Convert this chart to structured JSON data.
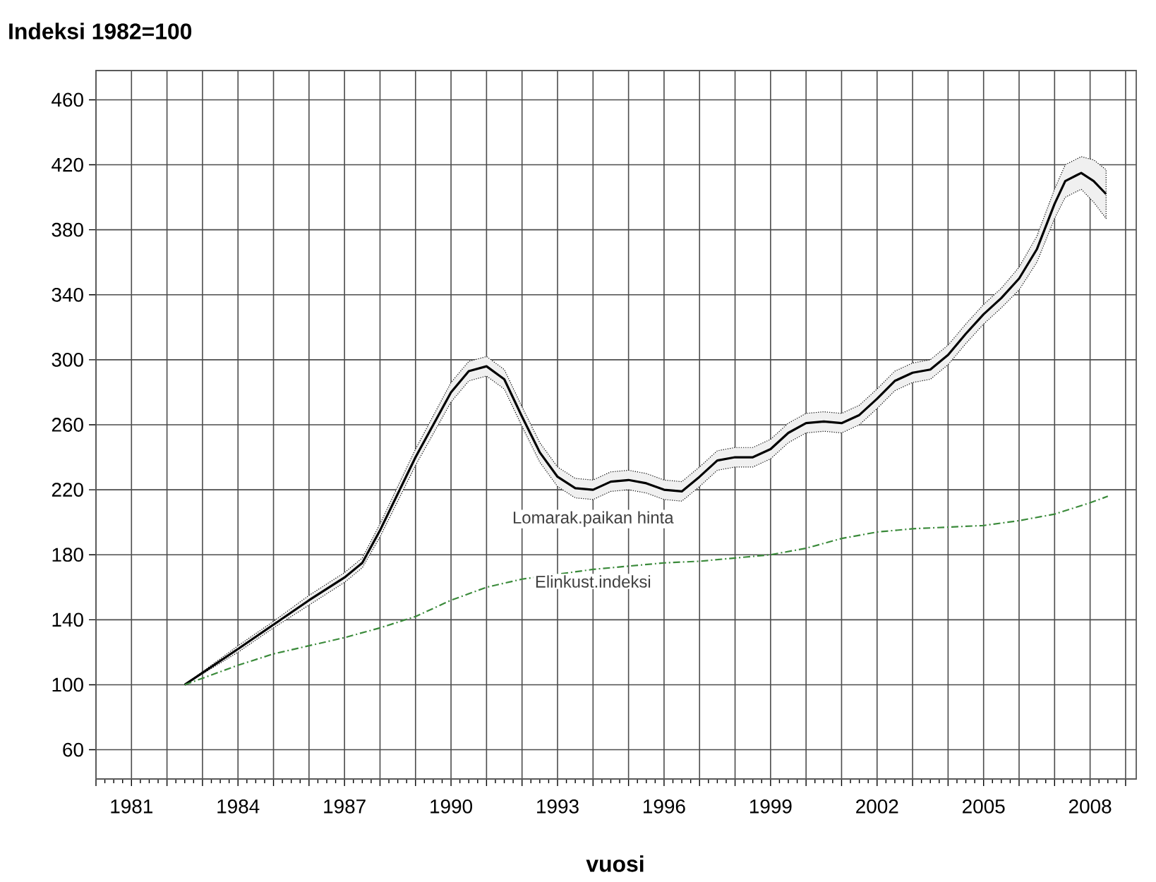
{
  "chart_data": {
    "type": "line",
    "title": "Indeksi 1982=100",
    "xlabel": "vuosi",
    "xlim": [
      1980,
      2009.3
    ],
    "ylim": [
      42,
      478
    ],
    "xticks": [
      {
        "value": 1980,
        "label": null
      },
      1981,
      {
        "value": 1982,
        "label": null
      },
      {
        "value": 1983,
        "label": null
      },
      1984,
      {
        "value": 1985,
        "label": null
      },
      {
        "value": 1986,
        "label": null
      },
      1987,
      {
        "value": 1988,
        "label": null
      },
      {
        "value": 1989,
        "label": null
      },
      1990,
      {
        "value": 1991,
        "label": null
      },
      {
        "value": 1992,
        "label": null
      },
      1993,
      {
        "value": 1994,
        "label": null
      },
      {
        "value": 1995,
        "label": null
      },
      1996,
      {
        "value": 1997,
        "label": null
      },
      {
        "value": 1998,
        "label": null
      },
      1999,
      {
        "value": 2000,
        "label": null
      },
      {
        "value": 2001,
        "label": null
      },
      2002,
      {
        "value": 2003,
        "label": null
      },
      {
        "value": 2004,
        "label": null
      },
      2005,
      {
        "value": 2006,
        "label": null
      },
      {
        "value": 2007,
        "label": null
      },
      2008,
      {
        "value": 2009,
        "label": null
      }
    ],
    "yticks": [
      60,
      100,
      140,
      180,
      220,
      260,
      300,
      340,
      380,
      420,
      460
    ],
    "grid": true,
    "legend": false,
    "marker": "none",
    "series": [
      {
        "name": "Lomarak.paikan hinta",
        "color": "#000000",
        "line_style": "solid",
        "x": [
          1982.5,
          1984,
          1985,
          1986,
          1987,
          1987.5,
          1988,
          1989,
          1990,
          1990.5,
          1991,
          1991.5,
          1992,
          1992.5,
          1993,
          1993.5,
          1994,
          1994.5,
          1995,
          1995.5,
          1996,
          1996.5,
          1997,
          1997.5,
          1998,
          1998.5,
          1999,
          1999.5,
          2000,
          2000.5,
          2001,
          2001.5,
          2002,
          2002.5,
          2003,
          2003.5,
          2004,
          2004.5,
          2005,
          2005.5,
          2006,
          2006.5,
          2007,
          2007.3,
          2007.75,
          2008.1,
          2008.45
        ],
        "values": [
          100,
          122,
          137,
          152,
          166,
          175,
          195,
          240,
          280,
          293,
          296,
          288,
          265,
          243,
          228,
          221,
          220,
          225,
          226,
          224,
          220,
          219,
          228,
          238,
          240,
          240,
          245,
          255,
          261,
          262,
          261,
          266,
          276,
          287,
          292,
          294,
          303,
          316,
          328,
          338,
          350,
          368,
          396,
          410,
          415,
          410,
          402
        ],
        "lower": [
          100,
          120,
          135,
          149,
          163,
          172,
          191,
          235,
          274,
          287,
          290,
          282,
          259,
          237,
          222,
          215,
          214,
          219,
          220,
          218,
          214,
          213,
          222,
          232,
          234,
          234,
          239,
          249,
          255,
          256,
          255,
          260,
          270,
          281,
          286,
          288,
          297,
          310,
          322,
          332,
          343,
          360,
          387,
          400,
          405,
          397,
          387
        ],
        "upper": [
          100,
          124,
          139,
          155,
          169,
          178,
          199,
          245,
          286,
          299,
          302,
          294,
          271,
          249,
          234,
          227,
          226,
          231,
          232,
          230,
          226,
          225,
          234,
          244,
          246,
          246,
          251,
          261,
          267,
          268,
          267,
          272,
          282,
          293,
          298,
          300,
          309,
          322,
          334,
          344,
          357,
          376,
          405,
          420,
          425,
          423,
          417
        ]
      },
      {
        "name": "Elinkust.indeksi",
        "color": "#3a8a3a",
        "line_style": "dashdot",
        "x": [
          1982.5,
          1984,
          1985,
          1986,
          1987,
          1988,
          1989,
          1990,
          1991,
          1992,
          1993,
          1994,
          1995,
          1996,
          1997,
          1998,
          1999,
          2000,
          2001,
          2002,
          2003,
          2004,
          2005,
          2006,
          2007,
          2008,
          2008.5
        ],
        "values": [
          100,
          112,
          119,
          124,
          129,
          135,
          142,
          152,
          160,
          165,
          168,
          171,
          173,
          175,
          176,
          178,
          180,
          184,
          190,
          194,
          196,
          197,
          198,
          201,
          205,
          212,
          216
        ]
      }
    ]
  }
}
